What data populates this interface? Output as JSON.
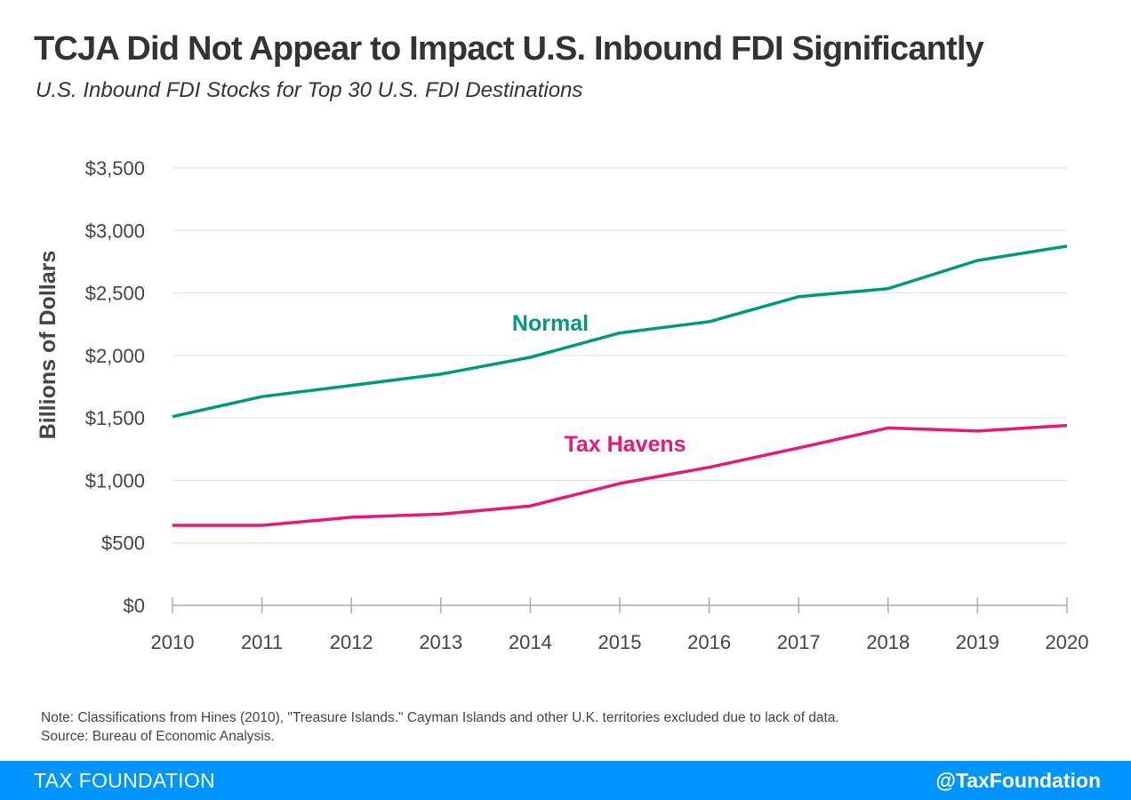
{
  "header": {
    "title": "TCJA Did Not Appear to Impact U.S. Inbound FDI Significantly",
    "subtitle": "U.S. Inbound FDI Stocks for Top 30 U.S. FDI Destinations"
  },
  "chart_data": {
    "type": "line",
    "ylabel": "Billions of Dollars",
    "xlabel": "",
    "x": [
      2010,
      2011,
      2012,
      2013,
      2014,
      2015,
      2016,
      2017,
      2018,
      2019,
      2020
    ],
    "ylim": [
      0,
      3500
    ],
    "yticks": [
      "$0",
      "$500",
      "$1,000",
      "$1,500",
      "$2,000",
      "$2,500",
      "$3,000",
      "$3,500"
    ],
    "xticks": [
      "2010",
      "2011",
      "2012",
      "2013",
      "2014",
      "2015",
      "2016",
      "2017",
      "2018",
      "2019",
      "2020"
    ],
    "grid": true,
    "series": [
      {
        "name": "Normal",
        "color": "#00997d",
        "values": [
          1510,
          1670,
          1760,
          1850,
          1985,
          2180,
          2270,
          2470,
          2535,
          2760,
          2875
        ]
      },
      {
        "name": "Tax Havens",
        "color": "#e8187a",
        "values": [
          640,
          640,
          705,
          730,
          795,
          975,
          1105,
          1260,
          1420,
          1395,
          1440
        ]
      }
    ]
  },
  "note": {
    "line1": "Note: Classifications from Hines (2010), \"Treasure Islands.\" Cayman Islands and other U.K. territories excluded due to lack of data.",
    "line2": "Source: Bureau of Economic Analysis."
  },
  "footer": {
    "brand": "TAX FOUNDATION",
    "handle": "@TaxFoundation",
    "color": "#0094ff"
  }
}
